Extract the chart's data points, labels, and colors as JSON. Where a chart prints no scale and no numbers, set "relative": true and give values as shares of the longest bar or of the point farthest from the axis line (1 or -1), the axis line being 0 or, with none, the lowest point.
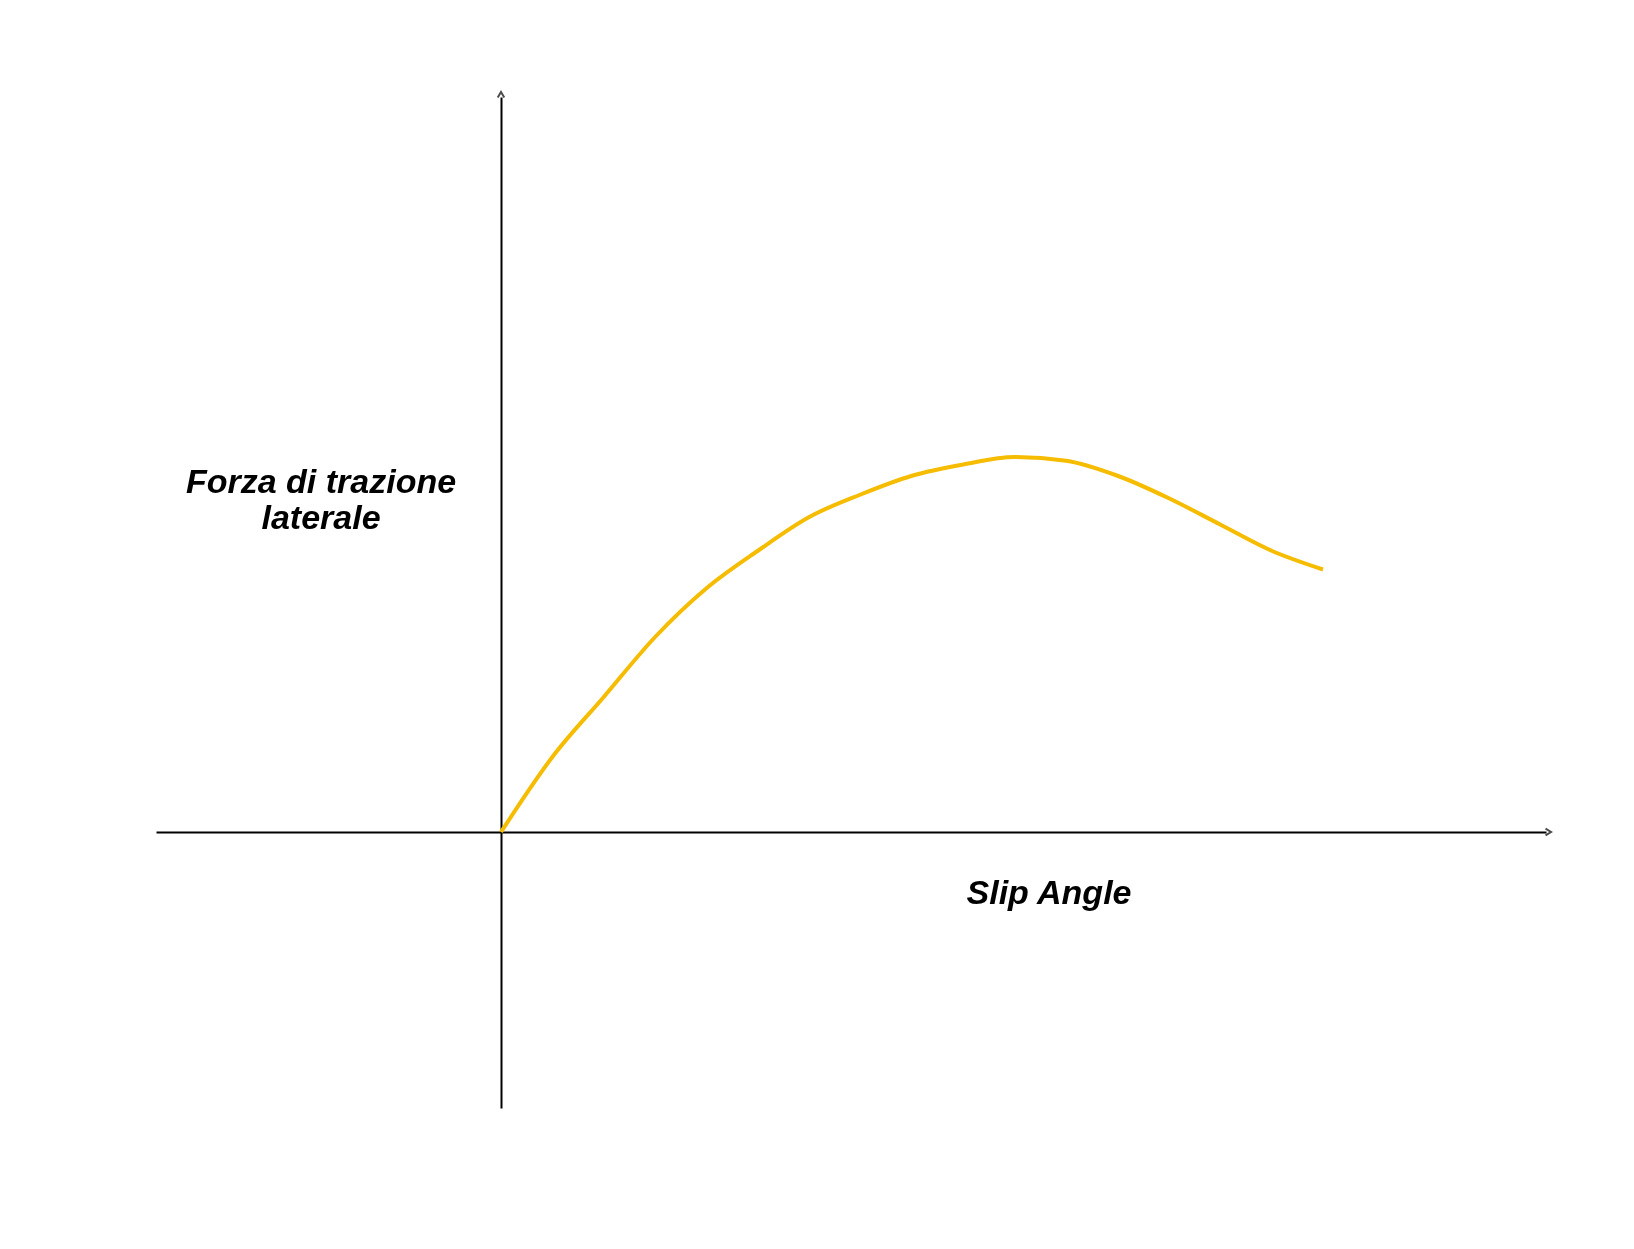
{
  "chart_data": {
    "type": "line",
    "relative": true,
    "xlabel": "Slip Angle",
    "ylabel": "Forza di trazione laterale",
    "categories": [
      null,
      null,
      null,
      null,
      null,
      null,
      null,
      null,
      null,
      null,
      null,
      null,
      null,
      null,
      null,
      null,
      null
    ],
    "series": [
      {
        "color": "#f5bc00",
        "values": [
          0,
          0.2,
          0.36,
          0.52,
          0.65,
          0.75,
          0.84,
          0.9,
          0.95,
          0.98,
          1.0,
          0.99,
          0.95,
          0.89,
          0.82,
          0.75,
          0.7
        ]
      }
    ],
    "grid": false,
    "marker": "none",
    "line_style": "solid"
  }
}
